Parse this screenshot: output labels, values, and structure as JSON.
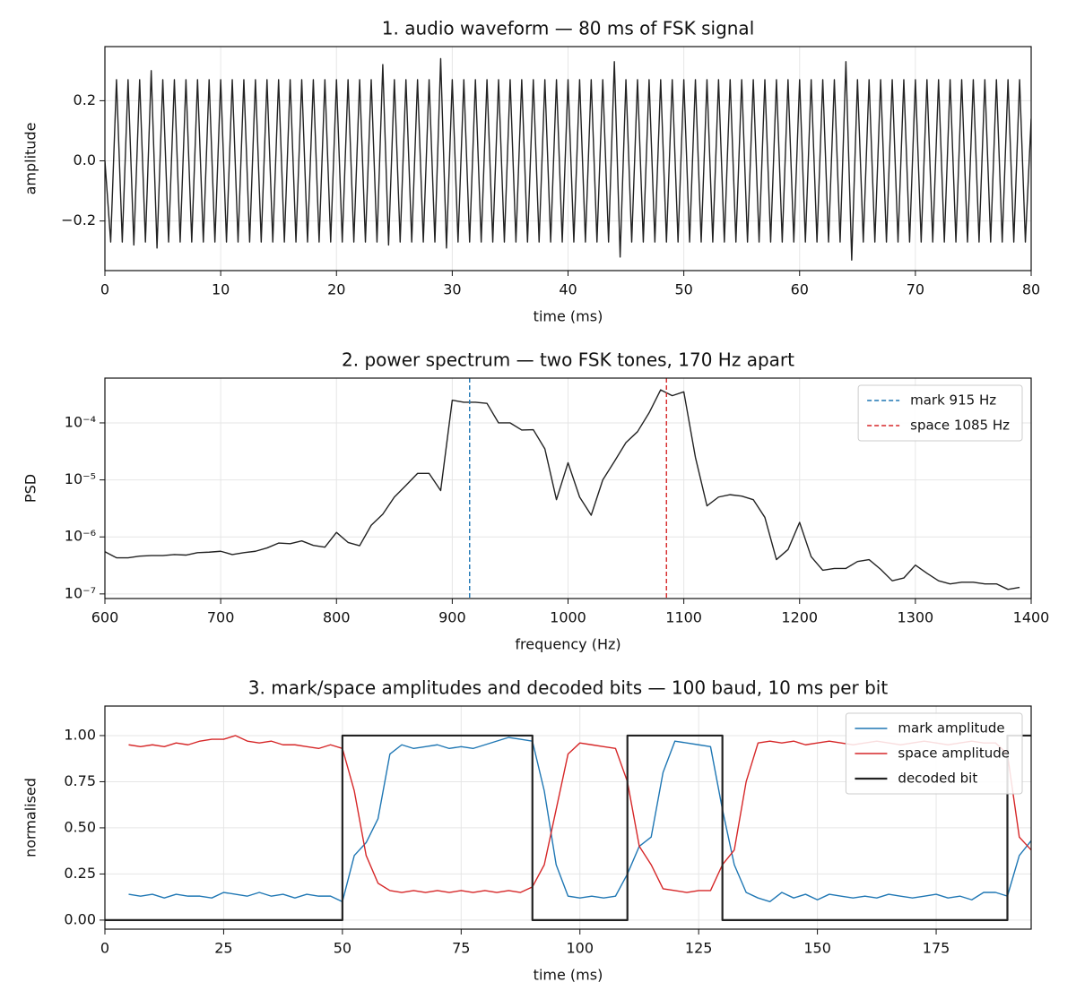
{
  "chart_data": [
    {
      "type": "line",
      "title": "1. audio waveform — 80 ms of FSK signal",
      "xlabel": "time (ms)",
      "ylabel": "amplitude",
      "xlim": [
        0,
        80
      ],
      "ylim": [
        -0.365,
        0.38
      ],
      "xticks": [
        0,
        10,
        20,
        30,
        40,
        50,
        60,
        70,
        80
      ],
      "yticks": [
        {
          "value": -0.2,
          "label": "−0.2"
        },
        {
          "value": 0,
          "label": "0.0"
        },
        {
          "value": 0.2,
          "label": "0.2"
        }
      ],
      "grid": true,
      "color": "#222222",
      "x": [
        0,
        0.5,
        1,
        1.5,
        2,
        2.5,
        3,
        3.5,
        4,
        4.5,
        5,
        5.5,
        6,
        6.5,
        7,
        7.5,
        8,
        8.5,
        9,
        9.5,
        10,
        10.5,
        11,
        11.5,
        12,
        12.5,
        13,
        13.5,
        14,
        14.5,
        15,
        15.5,
        16,
        16.5,
        17,
        17.5,
        18,
        18.5,
        19,
        19.5,
        20,
        20.5,
        21,
        21.5,
        22,
        22.5,
        23,
        23.5,
        24,
        24.5,
        25,
        25.5,
        26,
        26.5,
        27,
        27.5,
        28,
        28.5,
        29,
        29.5,
        30,
        30.5,
        31,
        31.5,
        32,
        32.5,
        33,
        33.5,
        34,
        34.5,
        35,
        35.5,
        36,
        36.5,
        37,
        37.5,
        38,
        38.5,
        39,
        39.5,
        40,
        40.5,
        41,
        41.5,
        42,
        42.5,
        43,
        43.5,
        44,
        44.5,
        45,
        45.5,
        46,
        46.5,
        47,
        47.5,
        48,
        48.5,
        49,
        49.5,
        50,
        50.5,
        51,
        51.5,
        52,
        52.5,
        53,
        53.5,
        54,
        54.5,
        55,
        55.5,
        56,
        56.5,
        57,
        57.5,
        58,
        58.5,
        59,
        59.5,
        60,
        60.5,
        61,
        61.5,
        62,
        62.5,
        63,
        63.5,
        64,
        64.5,
        65,
        65.5,
        66,
        66.5,
        67,
        67.5,
        68,
        68.5,
        69,
        69.5,
        70,
        70.5,
        71,
        71.5,
        72,
        72.5,
        73,
        73.5,
        74,
        74.5,
        75,
        75.5,
        76,
        76.5,
        77,
        77.5,
        78,
        78.5,
        79,
        79.5,
        80
      ],
      "values": [
        0.0,
        -0.27,
        0.27,
        -0.27,
        0.27,
        -0.28,
        0.27,
        -0.27,
        0.3,
        -0.29,
        0.27,
        -0.27,
        0.27,
        -0.27,
        0.27,
        -0.27,
        0.27,
        -0.27,
        0.27,
        -0.27,
        0.27,
        -0.27,
        0.27,
        -0.27,
        0.27,
        -0.27,
        0.27,
        -0.27,
        0.27,
        -0.27,
        0.27,
        -0.27,
        0.27,
        -0.27,
        0.27,
        -0.27,
        0.27,
        -0.27,
        0.27,
        -0.27,
        0.27,
        -0.27,
        0.27,
        -0.27,
        0.27,
        -0.27,
        0.27,
        -0.27,
        0.32,
        -0.28,
        0.27,
        -0.27,
        0.27,
        -0.27,
        0.27,
        -0.27,
        0.27,
        -0.27,
        0.34,
        -0.29,
        0.27,
        -0.27,
        0.27,
        -0.27,
        0.27,
        -0.27,
        0.27,
        -0.27,
        0.27,
        -0.27,
        0.27,
        -0.27,
        0.27,
        -0.27,
        0.27,
        -0.27,
        0.27,
        -0.27,
        0.27,
        -0.27,
        0.27,
        -0.27,
        0.27,
        -0.27,
        0.27,
        -0.27,
        0.27,
        -0.27,
        0.33,
        -0.32,
        0.27,
        -0.27,
        0.27,
        -0.27,
        0.27,
        -0.27,
        0.27,
        -0.27,
        0.27,
        -0.27,
        0.27,
        -0.27,
        0.27,
        -0.27,
        0.27,
        -0.27,
        0.27,
        -0.27,
        0.27,
        -0.27,
        0.27,
        -0.27,
        0.27,
        -0.27,
        0.27,
        -0.27,
        0.27,
        -0.27,
        0.27,
        -0.27,
        0.27,
        -0.27,
        0.27,
        -0.27,
        0.27,
        -0.27,
        0.27,
        -0.27,
        0.33,
        -0.33,
        0.27,
        -0.27,
        0.27,
        -0.27,
        0.27,
        -0.27,
        0.27,
        -0.27,
        0.27,
        -0.27,
        0.27,
        -0.27,
        0.27,
        -0.27,
        0.27,
        -0.27,
        0.27,
        -0.27,
        0.27,
        -0.27,
        0.27,
        -0.27,
        0.27,
        -0.27,
        0.27,
        -0.27,
        0.27,
        -0.27,
        0.27,
        -0.27,
        0.14
      ]
    },
    {
      "type": "line",
      "title": "2. power spectrum — two FSK tones, 170 Hz apart",
      "xlabel": "frequency (Hz)",
      "ylabel": "PSD",
      "log_y": true,
      "xlim": [
        600,
        1400
      ],
      "ylim": [
        8.3e-08,
        0.00061
      ],
      "xticks": [
        600,
        700,
        800,
        900,
        1000,
        1100,
        1200,
        1300,
        1400
      ],
      "yticks": [
        {
          "value": 1e-07,
          "label": "10⁻⁷"
        },
        {
          "value": 1e-06,
          "label": "10⁻⁶"
        },
        {
          "value": 1e-05,
          "label": "10⁻⁵"
        },
        {
          "value": 0.0001,
          "label": "10⁻⁴"
        }
      ],
      "grid": true,
      "legend": "upper right",
      "color": "#222222",
      "x": [
        600,
        610,
        620,
        630,
        640,
        650,
        660,
        670,
        680,
        690,
        700,
        710,
        720,
        730,
        740,
        750,
        760,
        770,
        780,
        790,
        800,
        810,
        820,
        830,
        840,
        850,
        860,
        870,
        880,
        890,
        900,
        910,
        920,
        930,
        940,
        950,
        960,
        970,
        980,
        990,
        1000,
        1010,
        1020,
        1030,
        1040,
        1050,
        1060,
        1070,
        1080,
        1090,
        1100,
        1110,
        1120,
        1130,
        1140,
        1150,
        1160,
        1170,
        1180,
        1190,
        1200,
        1210,
        1220,
        1230,
        1240,
        1250,
        1260,
        1270,
        1280,
        1290,
        1300,
        1310,
        1320,
        1330,
        1340,
        1350,
        1360,
        1370,
        1380,
        1390
      ],
      "values": [
        5.5e-07,
        4.3e-07,
        4.3e-07,
        4.6e-07,
        4.7e-07,
        4.7e-07,
        4.9e-07,
        4.8e-07,
        5.3e-07,
        5.4e-07,
        5.6e-07,
        4.9e-07,
        5.3e-07,
        5.6e-07,
        6.4e-07,
        7.8e-07,
        7.6e-07,
        8.5e-07,
        7.1e-07,
        6.6e-07,
        1.2e-06,
        8e-07,
        7e-07,
        1.6e-06,
        2.5e-06,
        5e-06,
        8e-06,
        1.3e-05,
        1.3e-05,
        6.5e-06,
        0.00025,
        0.00023,
        0.00023,
        0.00022,
        0.0001,
        0.0001,
        7.5e-05,
        7.6e-05,
        3.5e-05,
        4.5e-06,
        2e-05,
        5e-06,
        2.4e-06,
        1e-05,
        2.1e-05,
        4.5e-05,
        7e-05,
        0.00015,
        0.00038,
        0.0003,
        0.00035,
        2.5e-05,
        3.5e-06,
        5e-06,
        5.5e-06,
        5.2e-06,
        4.5e-06,
        2.2e-06,
        4e-07,
        6e-07,
        1.8e-06,
        4.5e-07,
        2.6e-07,
        2.8e-07,
        2.8e-07,
        3.7e-07,
        4e-07,
        2.7e-07,
        1.7e-07,
        1.9e-07,
        3.2e-07,
        2.3e-07,
        1.7e-07,
        1.5e-07,
        1.6e-07,
        1.6e-07,
        1.5e-07,
        1.5e-07,
        1.2e-07,
        1.3e-07
      ],
      "vlines": [
        {
          "x": 915,
          "name": "mark 915 Hz",
          "color": "#1f77b4"
        },
        {
          "x": 1085,
          "name": "space 1085 Hz",
          "color": "#d62728"
        }
      ]
    },
    {
      "type": "line",
      "title": "3. mark/space amplitudes and decoded bits — 100 baud, 10 ms per bit",
      "xlabel": "time (ms)",
      "ylabel": "normalised",
      "xlim": [
        0,
        195
      ],
      "ylim": [
        -0.049,
        1.16
      ],
      "xticks": [
        0,
        25,
        50,
        75,
        100,
        125,
        150,
        175
      ],
      "yticks": [
        {
          "value": 0,
          "label": "0.00"
        },
        {
          "value": 0.25,
          "label": "0.25"
        },
        {
          "value": 0.5,
          "label": "0.50"
        },
        {
          "value": 0.75,
          "label": "0.75"
        },
        {
          "value": 1,
          "label": "1.00"
        }
      ],
      "grid": true,
      "legend": "upper right",
      "series": [
        {
          "name": "mark amplitude",
          "color": "#1f77b4",
          "x": [
            5,
            7.5,
            10,
            12.5,
            15,
            17.5,
            20,
            22.5,
            25,
            27.5,
            30,
            32.5,
            35,
            37.5,
            40,
            42.5,
            45,
            47.5,
            50,
            52.5,
            55,
            57.5,
            60,
            62.5,
            65,
            67.5,
            70,
            72.5,
            75,
            77.5,
            80,
            82.5,
            85,
            87.5,
            90,
            92.5,
            95,
            97.5,
            100,
            102.5,
            105,
            107.5,
            110,
            112.5,
            115,
            117.5,
            120,
            122.5,
            125,
            127.5,
            130,
            132.5,
            135,
            137.5,
            140,
            142.5,
            145,
            147.5,
            150,
            152.5,
            155,
            157.5,
            160,
            162.5,
            165,
            167.5,
            170,
            172.5,
            175,
            177.5,
            180,
            182.5,
            185,
            187.5,
            190,
            192.5,
            195
          ],
          "values": [
            0.14,
            0.13,
            0.14,
            0.12,
            0.14,
            0.13,
            0.13,
            0.12,
            0.15,
            0.14,
            0.13,
            0.15,
            0.13,
            0.14,
            0.12,
            0.14,
            0.13,
            0.13,
            0.1,
            0.35,
            0.42,
            0.55,
            0.9,
            0.95,
            0.93,
            0.94,
            0.95,
            0.93,
            0.94,
            0.93,
            0.95,
            0.97,
            0.99,
            0.98,
            0.97,
            0.7,
            0.3,
            0.13,
            0.12,
            0.13,
            0.12,
            0.13,
            0.25,
            0.4,
            0.45,
            0.8,
            0.97,
            0.96,
            0.95,
            0.94,
            0.6,
            0.3,
            0.15,
            0.12,
            0.1,
            0.15,
            0.12,
            0.14,
            0.11,
            0.14,
            0.13,
            0.12,
            0.13,
            0.12,
            0.14,
            0.13,
            0.12,
            0.13,
            0.14,
            0.12,
            0.13,
            0.11,
            0.15,
            0.15,
            0.13,
            0.35,
            0.43
          ]
        },
        {
          "name": "space amplitude",
          "color": "#d62728",
          "x": [
            5,
            7.5,
            10,
            12.5,
            15,
            17.5,
            20,
            22.5,
            25,
            27.5,
            30,
            32.5,
            35,
            37.5,
            40,
            42.5,
            45,
            47.5,
            50,
            52.5,
            55,
            57.5,
            60,
            62.5,
            65,
            67.5,
            70,
            72.5,
            75,
            77.5,
            80,
            82.5,
            85,
            87.5,
            90,
            92.5,
            95,
            97.5,
            100,
            102.5,
            105,
            107.5,
            110,
            112.5,
            115,
            117.5,
            120,
            122.5,
            125,
            127.5,
            130,
            132.5,
            135,
            137.5,
            140,
            142.5,
            145,
            147.5,
            150,
            152.5,
            155,
            157.5,
            160,
            162.5,
            165,
            167.5,
            170,
            172.5,
            175,
            177.5,
            180,
            182.5,
            185,
            187.5,
            190,
            192.5,
            195
          ],
          "values": [
            0.95,
            0.94,
            0.95,
            0.94,
            0.96,
            0.95,
            0.97,
            0.98,
            0.98,
            1.0,
            0.97,
            0.96,
            0.97,
            0.95,
            0.95,
            0.94,
            0.93,
            0.95,
            0.93,
            0.7,
            0.35,
            0.2,
            0.16,
            0.15,
            0.16,
            0.15,
            0.16,
            0.15,
            0.16,
            0.15,
            0.16,
            0.15,
            0.16,
            0.15,
            0.18,
            0.3,
            0.6,
            0.9,
            0.96,
            0.95,
            0.94,
            0.93,
            0.75,
            0.4,
            0.3,
            0.17,
            0.16,
            0.15,
            0.16,
            0.16,
            0.3,
            0.38,
            0.75,
            0.96,
            0.97,
            0.96,
            0.97,
            0.95,
            0.96,
            0.97,
            0.96,
            0.95,
            0.96,
            0.97,
            0.96,
            0.95,
            0.96,
            0.97,
            0.96,
            0.95,
            0.96,
            0.97,
            0.96,
            0.96,
            0.9,
            0.45,
            0.38
          ]
        },
        {
          "name": "decoded bit",
          "color": "#222222",
          "x": [
            0,
            50,
            50,
            90,
            90,
            110,
            110,
            130,
            130,
            190,
            190,
            195
          ],
          "values": [
            0,
            0,
            1,
            1,
            0,
            0,
            1,
            1,
            0,
            0,
            1,
            1
          ]
        }
      ]
    }
  ]
}
